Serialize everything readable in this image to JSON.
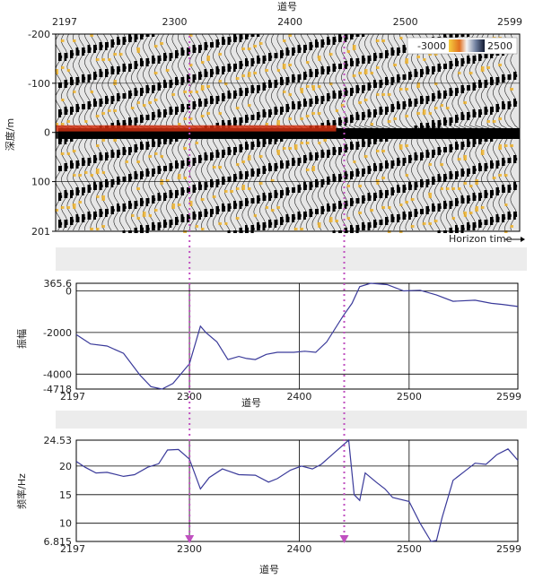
{
  "chart_data": [
    {
      "type": "heatmap",
      "title": "",
      "xlabel": "道号",
      "ylabel": "深度/m",
      "x_ticks": [
        "2197",
        "2300",
        "2400",
        "2500",
        "2599"
      ],
      "y_ticks": [
        "-200",
        "-100",
        "0",
        "100",
        "201"
      ],
      "xlim": [
        2197,
        2599
      ],
      "ylim": [
        -200,
        201
      ],
      "colorbar": {
        "min_label": "-3000",
        "max_label": "2500"
      },
      "annotation": "Horizon time",
      "horizon_depth": 0,
      "colors": {
        "negative": "#f0b020",
        "peak": "#d03010",
        "positive": "#000000",
        "background": "#e6e6e6"
      }
    },
    {
      "type": "line",
      "xlabel": "道号",
      "ylabel": "振幅",
      "xlim": [
        2197,
        2599
      ],
      "ylim": [
        -4718,
        365.6
      ],
      "x_ticks": [
        "2197",
        "2300",
        "2400",
        "2500",
        "2599"
      ],
      "y_ticks": [
        "365.6",
        "0",
        "-2000",
        "-4000",
        "-4718"
      ],
      "x": [
        2197,
        2210,
        2225,
        2240,
        2255,
        2265,
        2275,
        2285,
        2300,
        2310,
        2315,
        2325,
        2335,
        2345,
        2352,
        2360,
        2370,
        2380,
        2395,
        2405,
        2415,
        2425,
        2440,
        2448,
        2455,
        2465,
        2480,
        2495,
        2510,
        2525,
        2540,
        2560,
        2575,
        2585,
        2599
      ],
      "values": [
        -2100,
        -2550,
        -2650,
        -3000,
        -4050,
        -4600,
        -4720,
        -4450,
        -3500,
        -1700,
        -2000,
        -2450,
        -3300,
        -3150,
        -3250,
        -3300,
        -3050,
        -2950,
        -2950,
        -2900,
        -2950,
        -2450,
        -1200,
        -600,
        200,
        365.6,
        300,
        0,
        30,
        -200,
        -500,
        -450,
        -600,
        -650,
        -750
      ],
      "color": "#3a3a9a"
    },
    {
      "type": "line",
      "xlabel": "道号",
      "ylabel": "频率/Hz",
      "xlim": [
        2197,
        2599
      ],
      "ylim": [
        6.815,
        24.53
      ],
      "x_ticks": [
        "2197",
        "2300",
        "2400",
        "2500",
        "2599"
      ],
      "y_ticks": [
        "24.53",
        "20",
        "15",
        "10",
        "6.815"
      ],
      "x": [
        2197,
        2205,
        2215,
        2225,
        2240,
        2250,
        2262,
        2272,
        2280,
        2290,
        2300,
        2310,
        2318,
        2330,
        2345,
        2360,
        2372,
        2380,
        2392,
        2402,
        2412,
        2420,
        2430,
        2445,
        2450,
        2455,
        2460,
        2470,
        2478,
        2485,
        2500,
        2510,
        2520,
        2525,
        2530,
        2540,
        2550,
        2560,
        2570,
        2580,
        2590,
        2599
      ],
      "values": [
        20.8,
        19.8,
        18.8,
        18.9,
        18.2,
        18.5,
        19.8,
        20.4,
        22.8,
        22.9,
        21.2,
        16.0,
        18.0,
        19.5,
        18.5,
        18.4,
        17.2,
        17.8,
        19.3,
        20.0,
        19.5,
        20.3,
        22.0,
        24.53,
        15.0,
        14.0,
        18.8,
        17.2,
        16.0,
        14.5,
        13.8,
        10.0,
        6.815,
        7.0,
        11.0,
        17.5,
        19.0,
        20.5,
        20.3,
        22.0,
        23.0,
        21.0
      ],
      "color": "#3a3a9a"
    }
  ],
  "guides": [
    2313,
    2447
  ]
}
